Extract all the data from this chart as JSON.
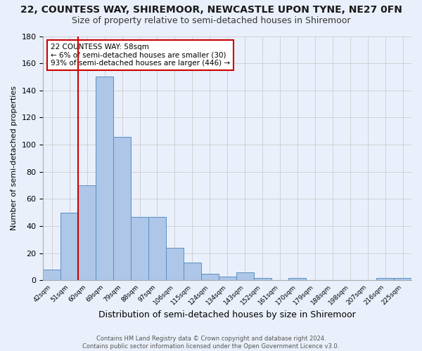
{
  "title1": "22, COUNTESS WAY, SHIREMOOR, NEWCASTLE UPON TYNE, NE27 0FN",
  "title2": "Size of property relative to semi-detached houses in Shiremoor",
  "xlabel": "Distribution of semi-detached houses by size in Shiremoor",
  "ylabel": "Number of semi-detached properties",
  "footer": "Contains HM Land Registry data © Crown copyright and database right 2024.\nContains public sector information licensed under the Open Government Licence v3.0.",
  "bin_labels": [
    "42sqm",
    "51sqm",
    "60sqm",
    "69sqm",
    "79sqm",
    "88sqm",
    "97sqm",
    "106sqm",
    "115sqm",
    "124sqm",
    "134sqm",
    "143sqm",
    "152sqm",
    "161sqm",
    "170sqm",
    "179sqm",
    "188sqm",
    "198sqm",
    "207sqm",
    "216sqm",
    "225sqm"
  ],
  "bin_values": [
    8,
    50,
    70,
    150,
    106,
    47,
    47,
    24,
    13,
    5,
    3,
    6,
    2,
    0,
    2,
    0,
    0,
    0,
    0,
    2,
    2
  ],
  "bar_color": "#aec6e8",
  "bar_edge_color": "#5a8fc2",
  "vline_x_index": 1.5,
  "vline_color": "#cc0000",
  "annotation_text": "22 COUNTESS WAY: 58sqm\n← 6% of semi-detached houses are smaller (30)\n93% of semi-detached houses are larger (446) →",
  "annotation_box_color": "#ffffff",
  "annotation_box_edge": "#cc0000",
  "ylim": [
    0,
    180
  ],
  "yticks": [
    0,
    20,
    40,
    60,
    80,
    100,
    120,
    140,
    160,
    180
  ],
  "grid_color": "#cccccc",
  "bg_color": "#eaf0fb",
  "title1_fontsize": 10,
  "title2_fontsize": 9,
  "xlabel_fontsize": 9,
  "ylabel_fontsize": 8,
  "footer_fontsize": 6,
  "annotation_fontsize": 7.5
}
